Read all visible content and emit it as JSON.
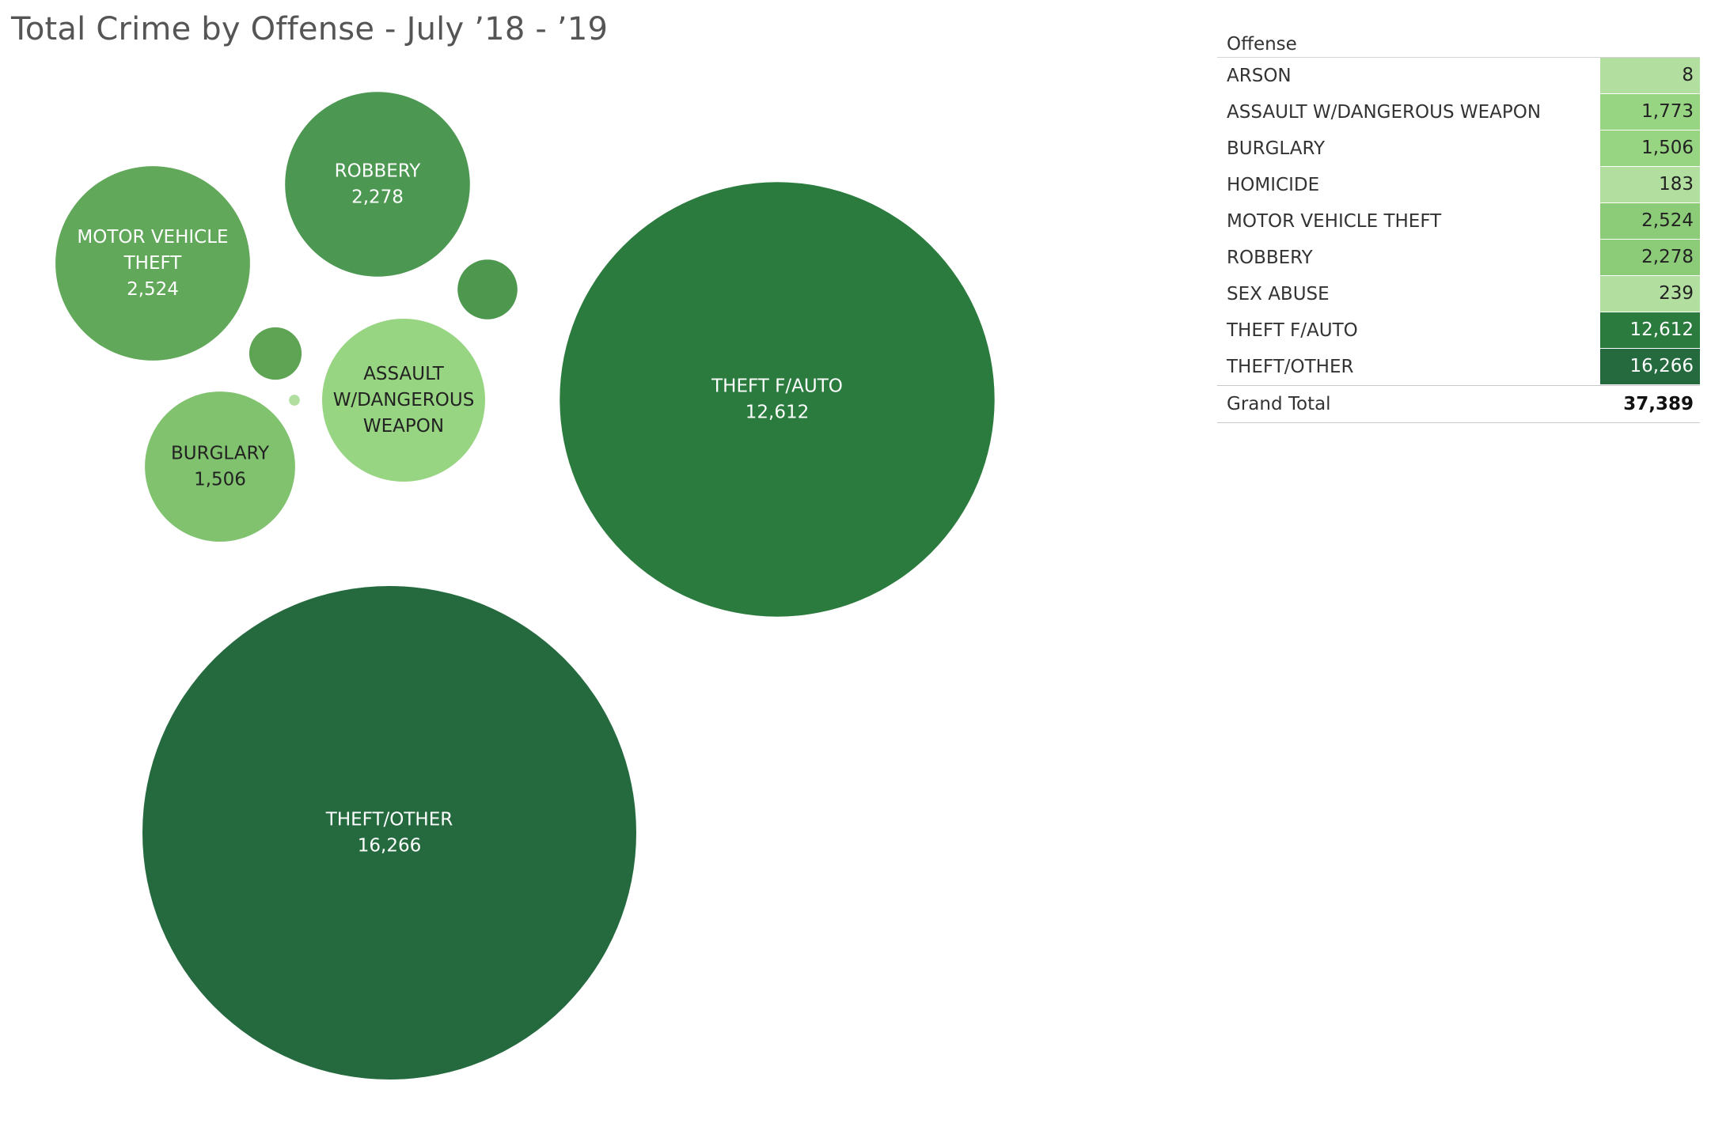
{
  "title": "Total Crime by Offense - July ’18 - ’19",
  "chart_data": {
    "type": "packed-bubble",
    "title": "Total Crime by Offense - July ’18 - ’19",
    "series": [
      {
        "name": "ARSON",
        "value": 8,
        "label_lines": [],
        "color": "#b2dfa0",
        "text_color": "#222222"
      },
      {
        "name": "ASSAULT W/DANGEROUS WEAPON",
        "value": 1773,
        "label_lines": [
          "ASSAULT",
          "W/DANGEROUS",
          "WEAPON"
        ],
        "value_label": "",
        "color": "#98d582",
        "text_color": "#222222"
      },
      {
        "name": "BURGLARY",
        "value": 1506,
        "label_lines": [
          "BURGLARY"
        ],
        "value_label": "1,506",
        "color": "#80c26e",
        "text_color": "#222222"
      },
      {
        "name": "HOMICIDE",
        "value": 183,
        "label_lines": [],
        "color": "#5fa454",
        "text_color": "#ffffff"
      },
      {
        "name": "MOTOR VEHICLE THEFT",
        "value": 2524,
        "label_lines": [
          "MOTOR VEHICLE",
          "THEFT"
        ],
        "value_label": "2,524",
        "color": "#62a85a",
        "text_color": "#ffffff"
      },
      {
        "name": "ROBBERY",
        "value": 2278,
        "label_lines": [
          "ROBBERY"
        ],
        "value_label": "2,278",
        "color": "#4c9751",
        "text_color": "#ffffff"
      },
      {
        "name": "SEX ABUSE",
        "value": 239,
        "label_lines": [],
        "color": "#4d974f",
        "text_color": "#ffffff"
      },
      {
        "name": "THEFT F/AUTO",
        "value": 12612,
        "label_lines": [
          "THEFT F/AUTO"
        ],
        "value_label": "12,612",
        "color": "#2b7b3e",
        "text_color": "#ffffff"
      },
      {
        "name": "THEFT/OTHER",
        "value": 16266,
        "label_lines": [
          "THEFT/OTHER"
        ],
        "value_label": "16,266",
        "color": "#256a3e",
        "text_color": "#ffffff"
      }
    ]
  },
  "table": {
    "header": "Offense",
    "rows": [
      {
        "offense": "ARSON",
        "value": "8",
        "bg": "#b2dfa0",
        "fg": "#222222"
      },
      {
        "offense": "ASSAULT W/DANGEROUS WEAPON",
        "value": "1,773",
        "bg": "#98d582",
        "fg": "#222222"
      },
      {
        "offense": "BURGLARY",
        "value": "1,506",
        "bg": "#98d582",
        "fg": "#222222"
      },
      {
        "offense": "HOMICIDE",
        "value": "183",
        "bg": "#b2dfa0",
        "fg": "#222222"
      },
      {
        "offense": "MOTOR VEHICLE THEFT",
        "value": "2,524",
        "bg": "#8ccc78",
        "fg": "#222222"
      },
      {
        "offense": "ROBBERY",
        "value": "2,278",
        "bg": "#8ccc78",
        "fg": "#222222"
      },
      {
        "offense": "SEX ABUSE",
        "value": "239",
        "bg": "#b2dfa0",
        "fg": "#222222"
      },
      {
        "offense": "THEFT F/AUTO",
        "value": "12,612",
        "bg": "#2b7b3e",
        "fg": "#ffffff"
      },
      {
        "offense": "THEFT/OTHER",
        "value": "16,266",
        "bg": "#256a3e",
        "fg": "#ffffff"
      }
    ],
    "grand_total_label": "Grand Total",
    "grand_total_value": "37,389"
  }
}
